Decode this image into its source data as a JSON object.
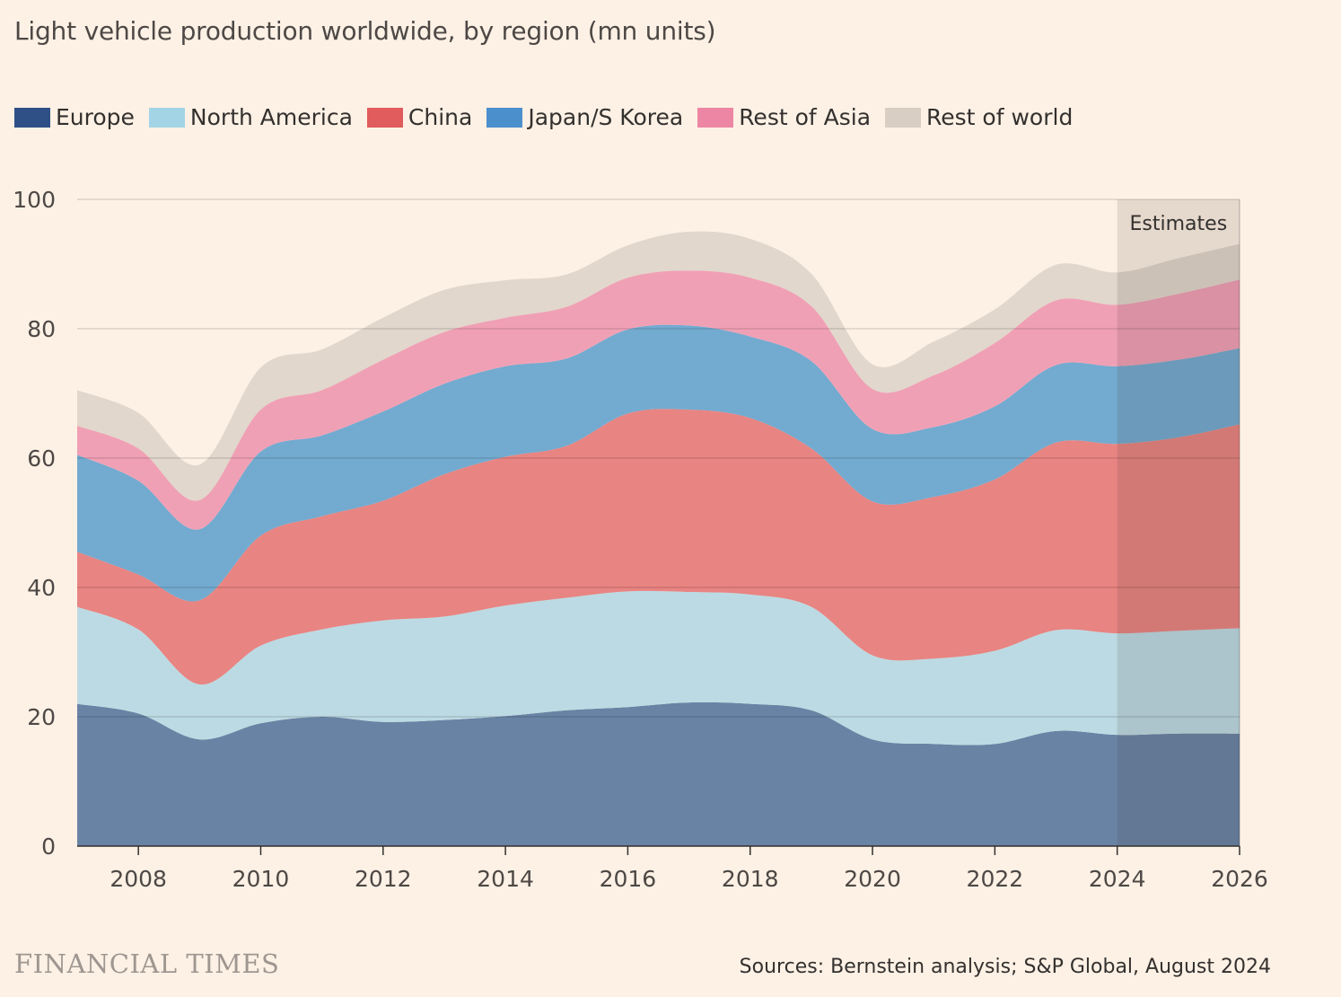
{
  "header": {
    "title": "Light vehicle production worldwide, by region (mn units)"
  },
  "footer": {
    "brand": "FINANCIAL TIMES",
    "source": "Sources: Bernstein analysis; S&P Global, August 2024"
  },
  "chart_data": {
    "type": "area",
    "stacked": true,
    "title": "Light vehicle production worldwide, by region (mn units)",
    "x": [
      2007,
      2008,
      2009,
      2010,
      2011,
      2012,
      2013,
      2014,
      2015,
      2016,
      2017,
      2018,
      2019,
      2020,
      2021,
      2022,
      2023,
      2024,
      2025,
      2026
    ],
    "series": [
      {
        "name": "Europe",
        "color": "#6983a5",
        "legend_color": "#2e5087",
        "values": [
          22,
          20.5,
          16.5,
          19,
          20,
          19.2,
          19.5,
          20.1,
          21,
          21.5,
          22.2,
          22,
          21,
          16.5,
          15.8,
          15.8,
          17.8,
          17.2,
          17.4,
          17.4
        ]
      },
      {
        "name": "North America",
        "color": "#bcdae3",
        "legend_color": "#a3d4e6",
        "values": [
          15,
          13,
          8.5,
          12,
          13.5,
          15.7,
          16,
          17.1,
          17.4,
          17.9,
          17.1,
          16.9,
          16,
          13,
          13.2,
          14.4,
          15.6,
          15.7,
          15.9,
          16.3
        ]
      },
      {
        "name": "China",
        "color": "#e88482",
        "legend_color": "#e05c5d",
        "values": [
          8.5,
          8.5,
          13,
          17,
          17.5,
          18.5,
          22,
          23,
          23.5,
          27.5,
          28.2,
          27.3,
          24.5,
          23.8,
          25,
          26.5,
          29,
          29.3,
          29.9,
          31.5
        ]
      },
      {
        "name": "Japan/S Korea",
        "color": "#73aad0",
        "legend_color": "#4c8fcd",
        "values": [
          15,
          14.5,
          11,
          13,
          12.5,
          13.8,
          14,
          14,
          13.5,
          13,
          13,
          12.6,
          13.5,
          11.2,
          10.8,
          11.3,
          12,
          12,
          12,
          11.8
        ]
      },
      {
        "name": "Rest of Asia",
        "color": "#f0a0b5",
        "legend_color": "#ec86a4",
        "values": [
          4.5,
          5,
          4.5,
          6.5,
          7,
          8,
          8,
          7.5,
          8,
          8,
          8.5,
          9.1,
          8.5,
          6.2,
          8,
          9.8,
          10,
          9.5,
          10.2,
          10.6
        ]
      },
      {
        "name": "Rest of world",
        "color": "#e1d7cc",
        "legend_color": "#d9cec3",
        "values": [
          5.5,
          5.5,
          5.5,
          6.5,
          6.3,
          6.5,
          6.5,
          5.8,
          5,
          5,
          6,
          6,
          5,
          3.8,
          5.2,
          5.2,
          5.5,
          5,
          5.5,
          5.5
        ]
      }
    ],
    "xlim": [
      2007,
      2026
    ],
    "ylim": [
      0,
      100
    ],
    "y_ticks": [
      0,
      20,
      40,
      60,
      80,
      100
    ],
    "x_ticks": [
      "2008",
      "2010",
      "2012",
      "2014",
      "2016",
      "2018",
      "2020",
      "2022",
      "2024",
      "2026"
    ],
    "grid": "horizontal",
    "legend_position": "top",
    "annotation": {
      "label": "Estimates",
      "from": 2024,
      "to": 2026
    }
  }
}
